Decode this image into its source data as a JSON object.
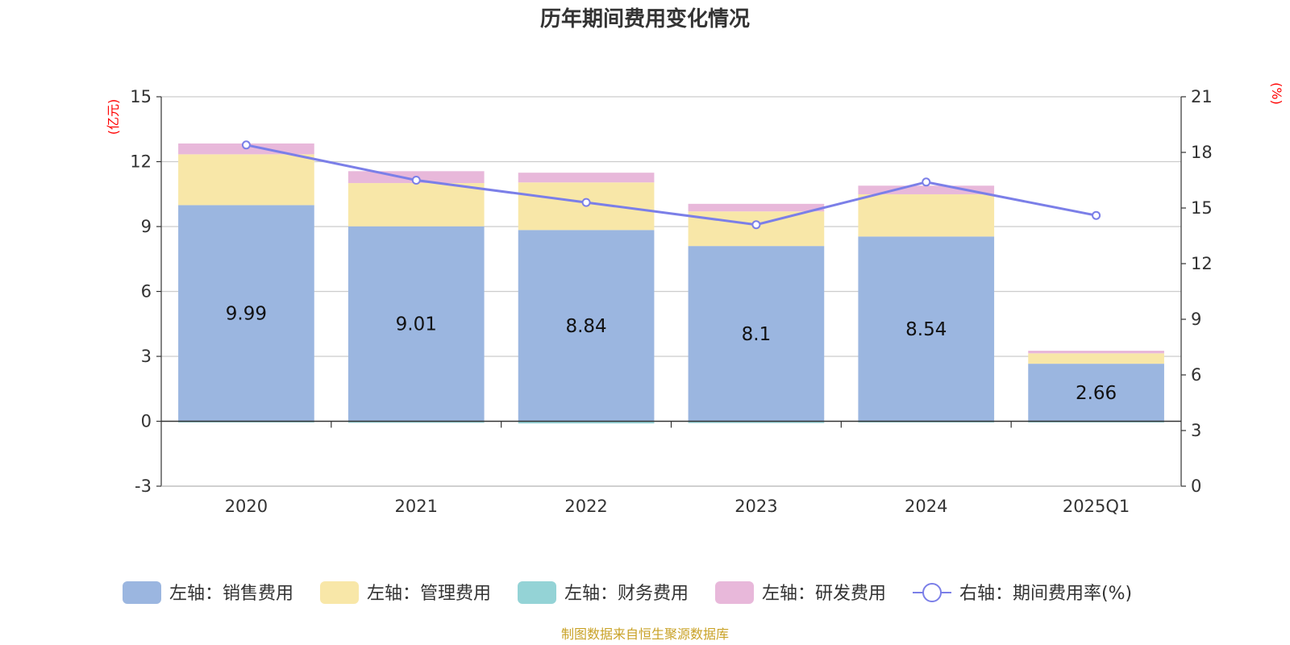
{
  "chart_data": {
    "type": "bar",
    "title": "历年期间费用变化情况",
    "categories": [
      "2020",
      "2021",
      "2022",
      "2023",
      "2024",
      "2025Q1"
    ],
    "left_axis": {
      "unit_label": "(亿元)",
      "ylim": [
        -3,
        15
      ],
      "ticks": [
        -3,
        0,
        3,
        6,
        9,
        12,
        15
      ]
    },
    "right_axis": {
      "unit_label": "(%)",
      "ylim": [
        0,
        21
      ],
      "ticks": [
        0,
        3,
        6,
        9,
        12,
        15,
        18,
        21
      ]
    },
    "series": [
      {
        "name": "左轴：销售费用",
        "axis": "left",
        "kind": "bar",
        "color": "#9bb6e0",
        "values": [
          9.99,
          9.01,
          8.84,
          8.1,
          8.54,
          2.66
        ],
        "labels": [
          "9.99",
          "9.01",
          "8.84",
          "8.1",
          "8.54",
          "2.66"
        ]
      },
      {
        "name": "左轴：管理费用",
        "axis": "left",
        "kind": "bar",
        "color": "#f8e7a8",
        "values": [
          2.35,
          2.0,
          2.2,
          1.6,
          1.95,
          0.48
        ]
      },
      {
        "name": "左轴：财务费用",
        "axis": "left",
        "kind": "bar",
        "color": "#94d3d6",
        "values": [
          -0.04,
          -0.07,
          -0.1,
          -0.08,
          -0.02,
          -0.01
        ]
      },
      {
        "name": "左轴：研发费用",
        "axis": "left",
        "kind": "bar",
        "color": "#e8b8da",
        "values": [
          0.5,
          0.55,
          0.45,
          0.35,
          0.4,
          0.12
        ]
      },
      {
        "name": "右轴：期间费用率(%)",
        "axis": "right",
        "kind": "line",
        "color": "#7b7fe8",
        "values": [
          18.4,
          16.5,
          15.3,
          14.1,
          16.4,
          14.6
        ]
      }
    ],
    "source": "制图数据来自恒生聚源数据库"
  }
}
